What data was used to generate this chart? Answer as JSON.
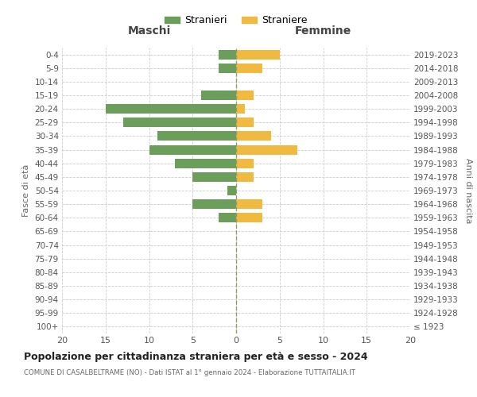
{
  "age_groups": [
    "100+",
    "95-99",
    "90-94",
    "85-89",
    "80-84",
    "75-79",
    "70-74",
    "65-69",
    "60-64",
    "55-59",
    "50-54",
    "45-49",
    "40-44",
    "35-39",
    "30-34",
    "25-29",
    "20-24",
    "15-19",
    "10-14",
    "5-9",
    "0-4"
  ],
  "birth_years": [
    "≤ 1923",
    "1924-1928",
    "1929-1933",
    "1934-1938",
    "1939-1943",
    "1944-1948",
    "1949-1953",
    "1954-1958",
    "1959-1963",
    "1964-1968",
    "1969-1973",
    "1974-1978",
    "1979-1983",
    "1984-1988",
    "1989-1993",
    "1994-1998",
    "1999-2003",
    "2004-2008",
    "2009-2013",
    "2014-2018",
    "2019-2023"
  ],
  "males": [
    0,
    0,
    0,
    0,
    0,
    0,
    0,
    0,
    2,
    5,
    1,
    5,
    7,
    10,
    9,
    13,
    15,
    4,
    0,
    2,
    2
  ],
  "females": [
    0,
    0,
    0,
    0,
    0,
    0,
    0,
    0,
    3,
    3,
    0,
    2,
    2,
    7,
    4,
    2,
    1,
    2,
    0,
    3,
    5
  ],
  "male_color": "#6a9e5a",
  "female_color": "#f0b940",
  "background_color": "#ffffff",
  "grid_color": "#cccccc",
  "title": "Popolazione per cittadinanza straniera per età e sesso - 2024",
  "subtitle": "COMUNE DI CASALBELTRAME (NO) - Dati ISTAT al 1° gennaio 2024 - Elaborazione TUTTAITALIA.IT",
  "xlabel_left": "Maschi",
  "xlabel_right": "Femmine",
  "ylabel_left": "Fasce di età",
  "ylabel_right": "Anni di nascita",
  "legend_male": "Stranieri",
  "legend_female": "Straniere",
  "xlim": 20,
  "bar_height": 0.7,
  "center_line_color": "#999966",
  "center_line_style": "--"
}
